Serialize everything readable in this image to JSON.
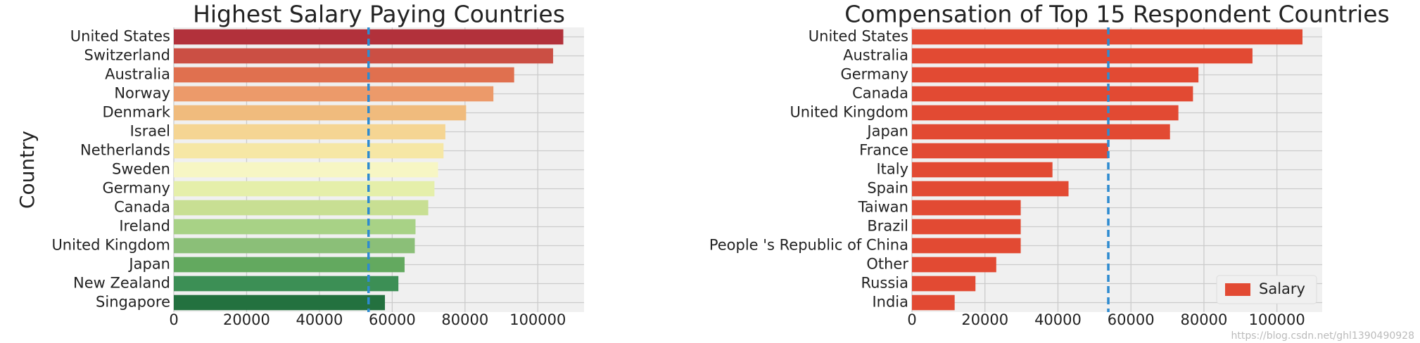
{
  "chart_data": [
    {
      "type": "barh",
      "title": "Highest Salary Paying Countries",
      "ylabel": "Country",
      "categories": [
        "United States",
        "Switzerland",
        "Australia",
        "Norway",
        "Denmark",
        "Israel",
        "Netherlands",
        "Sweden",
        "Germany",
        "Canada",
        "Ireland",
        "United Kingdom",
        "Japan",
        "New Zealand",
        "Singapore"
      ],
      "values": [
        107000,
        104200,
        93500,
        87800,
        80300,
        74600,
        74100,
        72600,
        71600,
        69900,
        66400,
        66200,
        63400,
        61700,
        58000
      ],
      "colors": [
        "#b2313b",
        "#cb4f44",
        "#e0704f",
        "#ec9a6a",
        "#f0bb7d",
        "#f5d593",
        "#f6e7a5",
        "#f7f6c4",
        "#e5efaa",
        "#c8df93",
        "#a8d286",
        "#8bbf78",
        "#63a95f",
        "#3c8f55",
        "#23713f"
      ],
      "xlim": [
        0,
        112700
      ],
      "xticks": [
        0,
        20000,
        40000,
        60000,
        80000,
        100000
      ],
      "reference_line": 53500,
      "grid": true
    },
    {
      "type": "barh",
      "title": "Compensation of Top 15 Respondent Countries",
      "categories": [
        "United States",
        "Australia",
        "Germany",
        "Canada",
        "United Kingdom",
        "Japan",
        "France",
        "Italy",
        "Spain",
        "Taiwan",
        "Brazil",
        "People 's Republic of China",
        "Other",
        "Russia",
        "India"
      ],
      "series": [
        {
          "name": "Salary",
          "color": "#e24a33",
          "values": [
            107000,
            93300,
            78500,
            77000,
            73000,
            70700,
            53800,
            38500,
            42900,
            29800,
            29800,
            29800,
            23100,
            17400,
            11700
          ]
        }
      ],
      "xlim": [
        0,
        112400
      ],
      "xticks": [
        0,
        20000,
        40000,
        60000,
        80000,
        100000
      ],
      "reference_line": 53800,
      "grid": true,
      "legend": "lower right"
    }
  ],
  "watermark": "https://blog.csdn.net/ghl1390490928"
}
